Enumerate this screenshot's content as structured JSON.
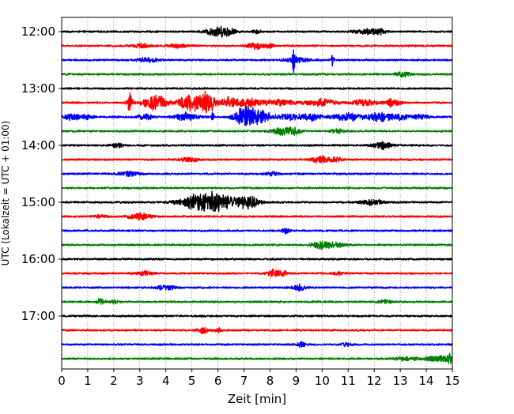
{
  "chart_data": {
    "type": "line",
    "title": "",
    "xlabel": "Zeit  [min]",
    "ylabel": "UTC (Lokalzeit = UTC + 01:00)",
    "xlim": [
      0,
      15
    ],
    "x_ticks": [
      0,
      1,
      2,
      3,
      4,
      5,
      6,
      7,
      8,
      9,
      10,
      11,
      12,
      13,
      14,
      15
    ],
    "x_tick_labels": [
      "0",
      "1",
      "2",
      "3",
      "4",
      "5",
      "6",
      "7",
      "8",
      "9",
      "10",
      "11",
      "12",
      "13",
      "14",
      "15"
    ],
    "vertical_grid": true,
    "grid_style": "dotted",
    "trace_interval_min": 15,
    "trace_colors": [
      "#000000",
      "#ff0000",
      "#0000ff",
      "#008000"
    ],
    "y_tick_labels": [
      {
        "label": "12:00",
        "trace_index": 0
      },
      {
        "label": "13:00",
        "trace_index": 4
      },
      {
        "label": "14:00",
        "trace_index": 8
      },
      {
        "label": "15:00",
        "trace_index": 12
      },
      {
        "label": "16:00",
        "trace_index": 16
      },
      {
        "label": "17:00",
        "trace_index": 20
      }
    ],
    "traces": [
      {
        "start": "12:00",
        "color": "#000000",
        "bursts": [
          [
            5.9,
            0.25,
            0.7
          ],
          [
            6.4,
            0.2,
            0.55
          ],
          [
            7.5,
            0.1,
            0.3
          ],
          [
            11.8,
            0.35,
            0.4
          ],
          [
            12.2,
            0.15,
            0.35
          ]
        ]
      },
      {
        "start": "12:15",
        "color": "#ff0000",
        "bursts": [
          [
            3.0,
            0.25,
            0.3
          ],
          [
            4.5,
            0.3,
            0.25
          ],
          [
            7.5,
            0.25,
            0.45
          ],
          [
            8.0,
            0.1,
            0.3
          ]
        ]
      },
      {
        "start": "12:30",
        "color": "#0000ff",
        "bursts": [
          [
            3.3,
            0.25,
            0.35
          ],
          [
            8.9,
            0.03,
            2.1
          ],
          [
            9.0,
            0.3,
            0.4
          ],
          [
            10.4,
            0.03,
            0.9
          ]
        ]
      },
      {
        "start": "12:45",
        "color": "#008000",
        "bursts": [
          [
            13.1,
            0.2,
            0.35
          ]
        ]
      },
      {
        "start": "13:00",
        "color": "#000000",
        "bursts": []
      },
      {
        "start": "13:15",
        "color": "#ff0000",
        "bursts": [
          [
            2.6,
            0.08,
            1.3
          ],
          [
            3.6,
            0.3,
            1.2
          ],
          [
            4.9,
            0.3,
            1.3
          ],
          [
            5.6,
            0.2,
            1.6
          ],
          [
            6.4,
            0.2,
            0.6
          ],
          [
            7.2,
            0.5,
            0.6
          ],
          [
            8.5,
            0.4,
            0.4
          ],
          [
            10.0,
            0.4,
            0.5
          ],
          [
            11.6,
            0.3,
            0.5
          ],
          [
            12.7,
            0.2,
            0.6
          ]
        ]
      },
      {
        "start": "13:30",
        "color": "#0000ff",
        "bursts": [
          [
            0.4,
            0.2,
            0.5
          ],
          [
            1.0,
            0.15,
            0.4
          ],
          [
            3.2,
            0.2,
            0.5
          ],
          [
            4.8,
            0.3,
            0.6
          ],
          [
            5.8,
            0.03,
            1.0
          ],
          [
            7.0,
            0.25,
            1.4
          ],
          [
            7.6,
            0.3,
            1.0
          ],
          [
            8.7,
            0.3,
            0.4
          ],
          [
            9.6,
            0.3,
            0.5
          ],
          [
            11.0,
            0.4,
            0.6
          ],
          [
            12.2,
            0.3,
            0.7
          ],
          [
            13.0,
            0.3,
            0.4
          ],
          [
            13.8,
            0.2,
            0.3
          ]
        ]
      },
      {
        "start": "13:45",
        "color": "#008000",
        "bursts": [
          [
            8.5,
            0.3,
            0.6
          ],
          [
            8.9,
            0.2,
            0.4
          ],
          [
            10.6,
            0.2,
            0.25
          ]
        ]
      },
      {
        "start": "14:00",
        "color": "#000000",
        "bursts": [
          [
            2.1,
            0.15,
            0.35
          ],
          [
            12.3,
            0.25,
            0.55
          ]
        ]
      },
      {
        "start": "14:15",
        "color": "#ff0000",
        "bursts": [
          [
            4.9,
            0.25,
            0.35
          ],
          [
            9.9,
            0.2,
            0.6
          ],
          [
            10.5,
            0.2,
            0.3
          ]
        ]
      },
      {
        "start": "14:30",
        "color": "#0000ff",
        "bursts": [
          [
            2.6,
            0.3,
            0.3
          ],
          [
            8.1,
            0.2,
            0.25
          ]
        ]
      },
      {
        "start": "14:45",
        "color": "#008000",
        "bursts": []
      },
      {
        "start": "15:00",
        "color": "#000000",
        "bursts": [
          [
            5.4,
            0.55,
            1.4
          ],
          [
            6.4,
            0.5,
            0.7
          ],
          [
            7.2,
            0.25,
            0.8
          ],
          [
            11.9,
            0.3,
            0.4
          ]
        ]
      },
      {
        "start": "15:15",
        "color": "#ff0000",
        "bursts": [
          [
            1.5,
            0.2,
            0.2
          ],
          [
            3.0,
            0.3,
            0.45
          ]
        ]
      },
      {
        "start": "15:30",
        "color": "#0000ff",
        "bursts": [
          [
            8.6,
            0.1,
            0.4
          ]
        ]
      },
      {
        "start": "15:45",
        "color": "#008000",
        "bursts": [
          [
            10.0,
            0.25,
            0.6
          ],
          [
            10.6,
            0.2,
            0.35
          ]
        ]
      },
      {
        "start": "16:00",
        "color": "#000000",
        "bursts": []
      },
      {
        "start": "16:15",
        "color": "#ff0000",
        "bursts": [
          [
            3.2,
            0.2,
            0.35
          ],
          [
            8.1,
            0.15,
            0.55
          ],
          [
            8.5,
            0.15,
            0.35
          ],
          [
            10.6,
            0.15,
            0.2
          ]
        ]
      },
      {
        "start": "16:30",
        "color": "#0000ff",
        "bursts": [
          [
            4.0,
            0.25,
            0.35
          ],
          [
            9.1,
            0.2,
            0.45
          ]
        ]
      },
      {
        "start": "16:45",
        "color": "#008000",
        "bursts": [
          [
            1.5,
            0.12,
            0.45
          ],
          [
            2.0,
            0.1,
            0.3
          ],
          [
            12.4,
            0.15,
            0.35
          ]
        ]
      },
      {
        "start": "17:00",
        "color": "#000000",
        "bursts": []
      },
      {
        "start": "17:15",
        "color": "#ff0000",
        "bursts": [
          [
            5.4,
            0.12,
            0.55
          ],
          [
            6.0,
            0.1,
            0.3
          ]
        ]
      },
      {
        "start": "17:30",
        "color": "#0000ff",
        "bursts": [
          [
            9.2,
            0.1,
            0.4
          ],
          [
            10.9,
            0.15,
            0.2
          ]
        ]
      },
      {
        "start": "17:45",
        "color": "#008000",
        "bursts": [
          [
            13.2,
            0.3,
            0.25
          ],
          [
            14.5,
            0.4,
            0.4
          ],
          [
            14.9,
            0.1,
            0.6
          ]
        ]
      }
    ]
  }
}
